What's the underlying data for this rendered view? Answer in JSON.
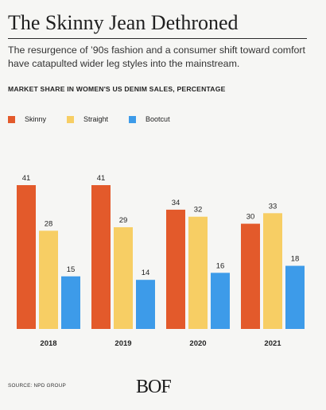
{
  "header": {
    "title": "The Skinny Jean Dethroned",
    "subtitle": "The resurgence of ’90s fashion and a consumer shift toward comfort have catapulted wider leg styles into the mainstream.",
    "ylabel": "MARKET SHARE IN WOMEN'S US DENIM SALES, PERCENTAGE"
  },
  "footer": {
    "source": "SOURCE: NPD GROUP",
    "logo": "BOF"
  },
  "colors": {
    "skinny": "#e35a2b",
    "straight": "#f7ce64",
    "bootcut": "#3d9be9"
  },
  "chart_data": {
    "type": "bar",
    "categories": [
      "2018",
      "2019",
      "2020",
      "2021"
    ],
    "series": [
      {
        "name": "Skinny",
        "values": [
          41,
          41,
          34,
          30
        ]
      },
      {
        "name": "Straight",
        "values": [
          28,
          29,
          32,
          33
        ]
      },
      {
        "name": "Bootcut",
        "values": [
          15,
          14,
          16,
          18
        ]
      }
    ],
    "ylim": [
      0,
      41
    ],
    "grid": false,
    "legend": "top-left",
    "data_labels": true
  }
}
